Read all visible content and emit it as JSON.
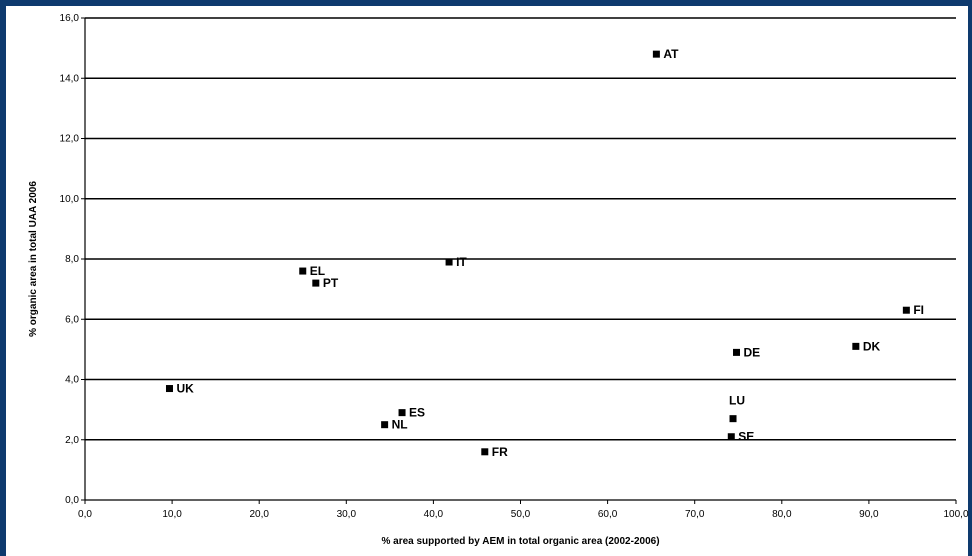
{
  "chart_data": {
    "type": "scatter",
    "title": "",
    "xlabel": "% area supported by AEM in total organic area (2002-2006)",
    "ylabel": "% organic area in total UAA 2006",
    "xlim": [
      0,
      100
    ],
    "ylim": [
      0,
      16
    ],
    "x_ticks": [
      "0,0",
      "10,0",
      "20,0",
      "30,0",
      "40,0",
      "50,0",
      "60,0",
      "70,0",
      "80,0",
      "90,0",
      "100,0"
    ],
    "y_ticks": [
      "0,0",
      "2,0",
      "4,0",
      "6,0",
      "8,0",
      "10,0",
      "12,0",
      "14,0",
      "16,0"
    ],
    "gridlines": "horizontal",
    "points": [
      {
        "label": "AT",
        "x": 65.6,
        "y": 14.8
      },
      {
        "label": "EL",
        "x": 25.0,
        "y": 7.6
      },
      {
        "label": "PT",
        "x": 26.5,
        "y": 7.2
      },
      {
        "label": "IT",
        "x": 41.8,
        "y": 7.9
      },
      {
        "label": "FI",
        "x": 94.3,
        "y": 6.3
      },
      {
        "label": "DK",
        "x": 88.5,
        "y": 5.1
      },
      {
        "label": "DE",
        "x": 74.8,
        "y": 4.9
      },
      {
        "label": "UK",
        "x": 9.7,
        "y": 3.7
      },
      {
        "label": "ES",
        "x": 36.4,
        "y": 2.9
      },
      {
        "label": "NL",
        "x": 34.4,
        "y": 2.5
      },
      {
        "label": "FR",
        "x": 45.9,
        "y": 1.6
      },
      {
        "label": "LU",
        "x": 74.4,
        "y": 2.7
      },
      {
        "label": "SE",
        "x": 74.2,
        "y": 2.1
      }
    ]
  }
}
